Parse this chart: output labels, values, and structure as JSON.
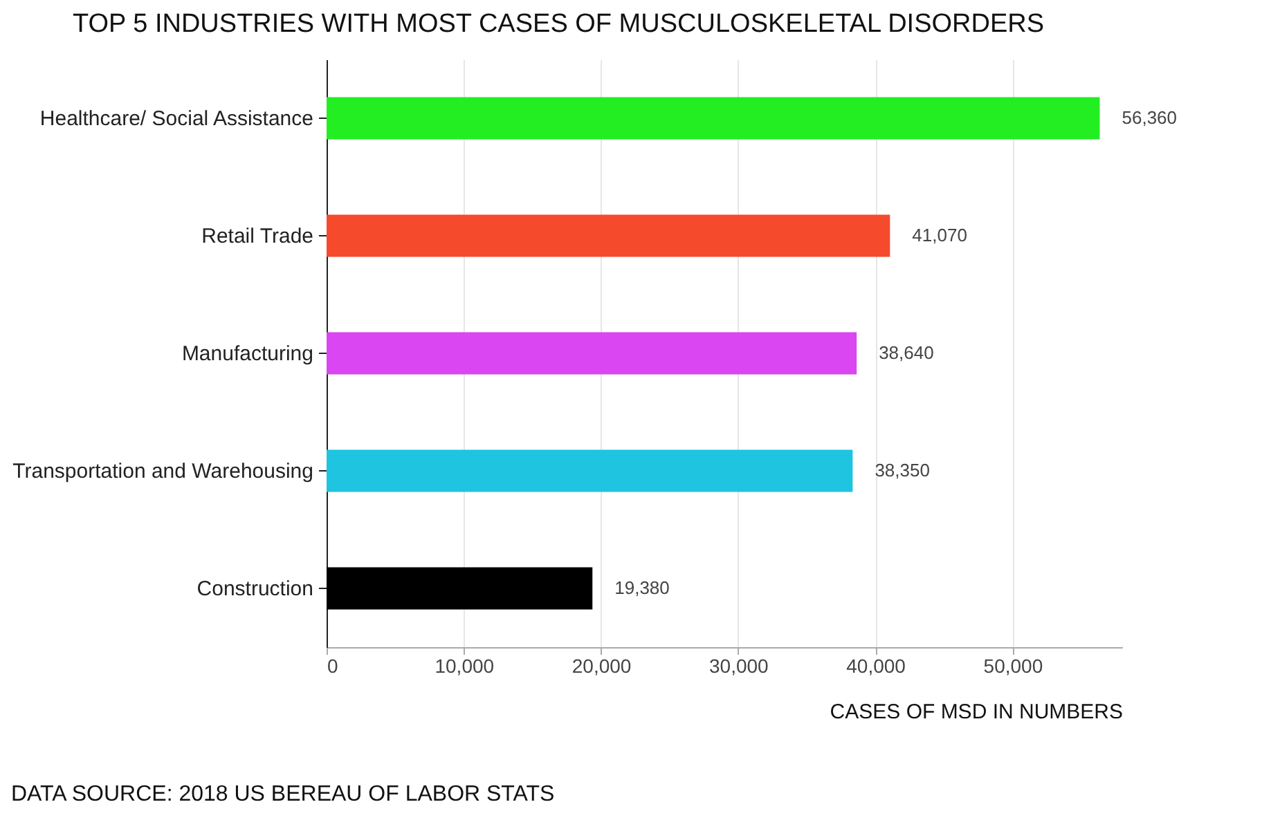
{
  "chart_data": {
    "type": "bar",
    "orientation": "horizontal",
    "title": "TOP 5 INDUSTRIES WITH MOST CASES OF MUSCULOSKELETAL DISORDERS",
    "categories": [
      "Healthcare/ Social Assistance",
      "Retail Trade",
      "Manufacturing",
      "Transportation and Warehousing",
      "Construction"
    ],
    "values": [
      56360,
      41070,
      38640,
      38350,
      19380
    ],
    "value_labels": [
      "56,360",
      "41,070",
      "38,640",
      "38,350",
      "19,380"
    ],
    "colors": [
      "#22ee22",
      "#f54b2c",
      "#d946f2",
      "#1ec4e0",
      "#000000"
    ],
    "xlim": [
      0,
      58000
    ],
    "xticks": [
      0,
      {
        "value": 10000,
        "label": "10,000"
      },
      {
        "value": 20000,
        "label": "20,000"
      },
      {
        "value": 30000,
        "label": "30,000"
      },
      {
        "value": 40000,
        "label": "40,000"
      },
      {
        "value": 50000,
        "label": "50,000"
      }
    ],
    "xlabel": "CASES OF MSD IN NUMBERS",
    "grid": "x",
    "annotations": [
      "DATA SOURCE: 2018 US BEREAU OF LABOR STATS"
    ]
  }
}
